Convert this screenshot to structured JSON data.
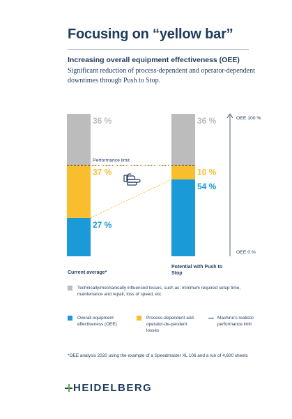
{
  "header": {
    "title": "Focusing on “yellow bar”",
    "subhead": "Increasing overall equipment effectiveness (OEE)",
    "subtext": "Significant reduction of process-dependent and operator-dependent downtimes through Push to Stop."
  },
  "chart_data": {
    "type": "bar",
    "stacked": true,
    "categories": [
      "Current average*",
      "Potential with Push to Stop"
    ],
    "series": [
      {
        "name": "Overall equipment effectiveness (OEE)",
        "values": [
          27,
          54
        ],
        "color": "#1a9ad6"
      },
      {
        "name": "Process-dependent and operator-dependent losses",
        "values": [
          37,
          10
        ],
        "color": "#f9be2e"
      },
      {
        "name": "Technically/mechanically influenced losses",
        "values": [
          36,
          36
        ],
        "color": "#bcbcbc"
      }
    ],
    "value_labels": {
      "current": [
        "27 %",
        "37 %",
        "36 %"
      ],
      "potential": [
        "54 %",
        "10 %",
        "36 %"
      ]
    },
    "performance_limit": {
      "value": 64,
      "label": "Performance limit"
    },
    "axis": {
      "top_label": "OEE 100 %",
      "bottom_label": "OEE 0 %"
    },
    "ylim": [
      0,
      100
    ]
  },
  "legend": {
    "technical": "Technically/mechanically influenced losses, such as: minimum required setup time, maintenance and repair, loss of speed, etc.",
    "oee": "Overall equipment effectiveness (OEE)",
    "process": "Process-dependent and operator-de-pendent losses",
    "limit": "Machine’s realistic performance limit"
  },
  "footnote": "*OEE analysis 2020 using the example of a Speedmaster XL 106 and a run of 4,600 sheets",
  "logo": {
    "text": "HEIDELBERG"
  },
  "icons": {
    "hand": "pointing-hand-icon"
  },
  "colors": {
    "navy": "#1e3a5c",
    "blue": "#1a9ad6",
    "yellow": "#f9be2e",
    "gray": "#bcbcbc",
    "green": "#5aab3c"
  }
}
